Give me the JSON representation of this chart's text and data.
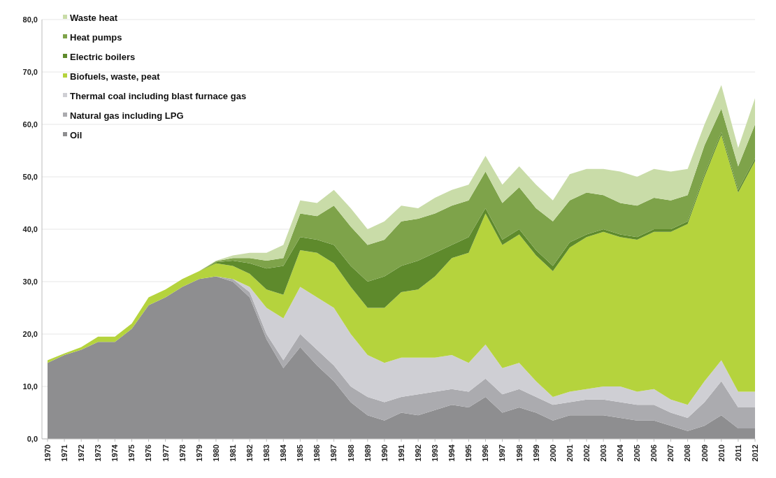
{
  "chart_data": {
    "type": "area",
    "stacked": true,
    "grid": "y",
    "legend": "top left",
    "categories": [
      "1970",
      "1971",
      "1972",
      "1973",
      "1974",
      "1975",
      "1976",
      "1977",
      "1978",
      "1979",
      "1980",
      "1981",
      "1982",
      "1983",
      "1984",
      "1985",
      "1986",
      "1987",
      "1988",
      "1989",
      "1990",
      "1991",
      "1992",
      "1993",
      "1994",
      "1995",
      "1996",
      "1997",
      "1998",
      "1999",
      "2000",
      "2001",
      "2002",
      "2003",
      "2004",
      "2005",
      "2006",
      "2007",
      "2008",
      "2009",
      "2010",
      "2011",
      "2012"
    ],
    "ylim": [
      0,
      80
    ],
    "yticks": [
      {
        "value": 0,
        "label": "0,0"
      },
      {
        "value": 10,
        "label": "10,0"
      },
      {
        "value": 20,
        "label": "20,0"
      },
      {
        "value": 30,
        "label": "30,0"
      },
      {
        "value": 40,
        "label": "40,0"
      },
      {
        "value": 50,
        "label": "50,0"
      },
      {
        "value": 60,
        "label": "60,0"
      },
      {
        "value": 70,
        "label": "70,0"
      },
      {
        "value": 80,
        "label": "80,0"
      }
    ],
    "series": [
      {
        "name": "Oil",
        "color": "#8e8e90",
        "values": [
          14.5,
          16,
          17,
          18.5,
          18.5,
          21,
          25.5,
          27,
          29,
          30.5,
          31,
          30,
          27,
          19,
          13.5,
          17.5,
          14,
          11,
          7,
          4.5,
          3.5,
          5,
          4.5,
          5.5,
          6.5,
          6,
          8,
          5,
          6,
          5,
          3.5,
          4.5,
          4.5,
          4.5,
          4,
          3.5,
          3.5,
          2.5,
          1.5,
          2.5,
          4.5,
          2,
          2
        ]
      },
      {
        "name": "Natural gas including LPG",
        "color": "#ababaf",
        "values": [
          0,
          0,
          0,
          0,
          0,
          0,
          0,
          0,
          0,
          0,
          0,
          0.5,
          1,
          1,
          1.5,
          2.5,
          3,
          3,
          3,
          3.5,
          3.5,
          3,
          4,
          3.5,
          3,
          3,
          3.5,
          3.5,
          3.5,
          3,
          3,
          2.5,
          3,
          3,
          3,
          3,
          3,
          2.5,
          2.5,
          4.5,
          6.5,
          4,
          4
        ]
      },
      {
        "name": "Thermal coal including blast furnace gas",
        "color": "#cfcfd4",
        "values": [
          0,
          0,
          0,
          0,
          0,
          0,
          0,
          0,
          0,
          0,
          0,
          0,
          1,
          5,
          8,
          9,
          10,
          11,
          10,
          8,
          7.5,
          7.5,
          7,
          6.5,
          6.5,
          5.5,
          6.5,
          5,
          5,
          3,
          1.5,
          2,
          2,
          2.5,
          3,
          2.5,
          3,
          2.5,
          2.5,
          4,
          4,
          3,
          3
        ]
      },
      {
        "name": "Biofuels, waste, peat",
        "color": "#b5d33d",
        "values": [
          0.5,
          0.3,
          0.5,
          1,
          1,
          1,
          1.5,
          1.5,
          1.5,
          1.5,
          2.5,
          2.5,
          2.5,
          3.5,
          4.5,
          7,
          8.5,
          8.5,
          9,
          9,
          10.5,
          12.5,
          13,
          15.5,
          18.5,
          21,
          25,
          23.5,
          24.5,
          24,
          24,
          27.5,
          29,
          29.5,
          28.5,
          29,
          30,
          32,
          34.5,
          39,
          43,
          38,
          44
        ]
      },
      {
        "name": "Electric boilers",
        "color": "#5e8a2c",
        "values": [
          0,
          0,
          0,
          0,
          0,
          0,
          0,
          0,
          0,
          0,
          0.2,
          1,
          2,
          4,
          5.5,
          2.5,
          2.5,
          3.5,
          4,
          5,
          6,
          5,
          5.5,
          4.5,
          2.5,
          3,
          1,
          1,
          1,
          1,
          1,
          1,
          0.5,
          0.5,
          0.5,
          0.5,
          0.5,
          0.5,
          0.5,
          0.5,
          0.5,
          0.5,
          0.5
        ]
      },
      {
        "name": "Heat pumps",
        "color": "#7ea34a",
        "values": [
          0,
          0,
          0,
          0,
          0,
          0,
          0,
          0,
          0,
          0,
          0.2,
          0.5,
          1,
          1.5,
          1.5,
          4.5,
          4.5,
          7.5,
          7.5,
          7,
          7,
          8.5,
          8,
          7.5,
          7.5,
          7,
          7,
          7,
          8,
          8,
          8.5,
          8,
          8,
          6.5,
          6,
          6,
          6,
          5.5,
          5,
          5.5,
          4.5,
          4.5,
          6.5
        ]
      },
      {
        "name": "Waste heat",
        "color": "#c9dca8",
        "values": [
          0,
          0,
          0,
          0,
          0,
          0,
          0,
          0,
          0,
          0,
          0.1,
          0.5,
          1,
          1.5,
          2.5,
          2.5,
          2.5,
          3,
          3.5,
          3,
          3.5,
          3,
          2,
          3,
          3,
          3,
          3,
          3.5,
          4,
          4.5,
          4,
          5,
          4.5,
          5,
          6,
          5.5,
          5.5,
          5.5,
          5,
          4,
          4.5,
          3.5,
          5
        ]
      }
    ]
  }
}
